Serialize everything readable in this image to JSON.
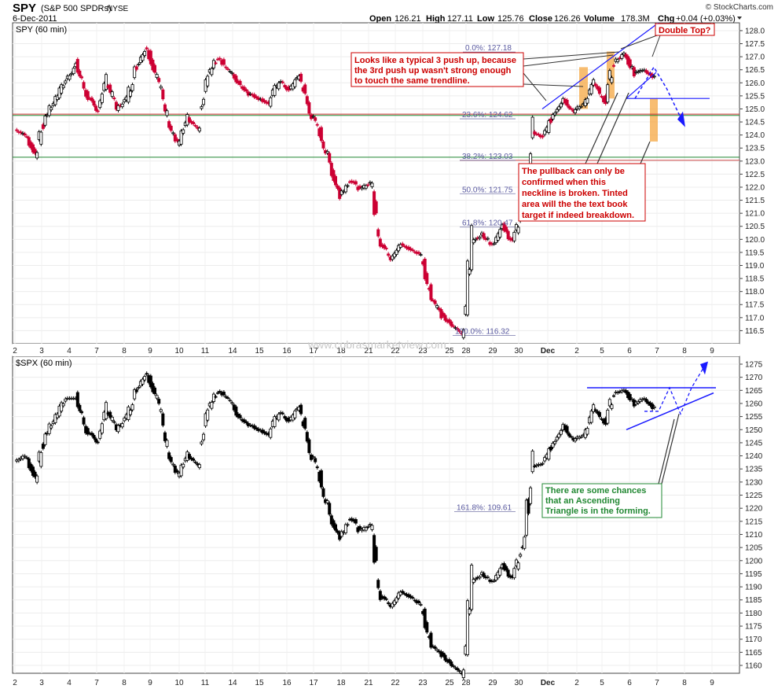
{
  "header": {
    "symbol": "SPY",
    "name": "(S&P 500 SPDRs)",
    "exchange": "NYSE",
    "date": "6-Dec-2011",
    "open_label": "Open",
    "open": "126.21",
    "high_label": "High",
    "high": "127.11",
    "low_label": "Low",
    "low": "125.76",
    "close_label": "Close",
    "close": "126.26",
    "volume_label": "Volume",
    "volume": "178.3M",
    "chg_label": "Chg",
    "chg": "+0.04 (+0.03%)",
    "brand": "© StockCharts.com"
  },
  "watermark": "www.cobrasmarketview.com",
  "x_labels": [
    "2",
    "3",
    "4",
    "7",
    "8",
    "9",
    "10",
    "11",
    "14",
    "15",
    "16",
    "17",
    "18",
    "21",
    "22",
    "23",
    "25",
    "28",
    "29",
    "30",
    "Dec",
    "2",
    "5",
    "6",
    "7",
    "8",
    "9"
  ],
  "colors": {
    "up": "#ffffff",
    "down": "#cc0033",
    "spx": "#000000",
    "trend": "#1a1aff",
    "fib": "#cc3333",
    "green": "#228833",
    "tint": "#f5a742"
  },
  "chart_data": [
    {
      "type": "candlestick",
      "title": "SPY (60 min)",
      "ylim": [
        116,
        128.3
      ],
      "y_ticks": [
        116.5,
        117,
        117.5,
        118,
        118.5,
        119,
        119.5,
        120,
        120.5,
        121,
        121.5,
        122,
        122.5,
        123,
        123.5,
        124,
        124.5,
        125,
        125.5,
        126,
        126.5,
        127,
        127.5,
        128
      ],
      "x_anchor_days": [
        "2",
        "3",
        "4",
        "7",
        "8",
        "9",
        "10",
        "11",
        "14",
        "15",
        "16",
        "17",
        "18",
        "21",
        "22",
        "23",
        "25",
        "28",
        "29",
        "30",
        "Dec",
        "2",
        "5",
        "6",
        "7"
      ],
      "close_path": [
        124.2,
        124.0,
        123.3,
        124.7,
        125.4,
        126.1,
        126.7,
        125.6,
        124.9,
        126.1,
        125.0,
        125.4,
        126.7,
        127.4,
        126.2,
        124.7,
        123.6,
        124.6,
        124.2,
        126.3,
        127.0,
        126.5,
        126.0,
        125.6,
        125.4,
        125.2,
        126.1,
        125.7,
        126.3,
        124.9,
        124.1,
        122.9,
        121.7,
        122.3,
        121.9,
        122.2,
        119.9,
        119.3,
        119.8,
        119.6,
        119.4,
        117.8,
        117.1,
        116.7,
        116.4,
        119.9,
        120.2,
        119.8,
        120.5,
        119.9,
        121.1,
        124.1,
        123.9,
        124.8,
        125.4,
        124.9,
        125.2,
        126.0,
        125.2,
        126.8,
        127.1,
        126.4,
        126.5,
        126.2
      ],
      "fib_levels": [
        {
          "label": "0.0%: 127.18",
          "value": 127.18
        },
        {
          "label": "23.6%: 124.62",
          "value": 124.62
        },
        {
          "label": "38.2%: 123.03",
          "value": 123.03
        },
        {
          "label": "50.0%: 121.75",
          "value": 121.75
        },
        {
          "label": "61.8%: 120.47",
          "value": 120.47
        },
        {
          "label": "100.0%: 116.32",
          "value": 116.32
        }
      ],
      "horizontal_lines": [
        {
          "name": "red-line",
          "value": 124.8
        },
        {
          "name": "green-line-upper",
          "value": 124.8
        },
        {
          "name": "green-line-lower",
          "value": 123.15
        },
        {
          "name": "neckline",
          "value": 125.4
        }
      ],
      "annotations": {
        "double_top": "Double Top?",
        "three_push": [
          "Looks like a typical 3 push up, because",
          "the 3rd push up wasn't strong enough",
          "to touch the same trendline."
        ],
        "pullback": [
          "The pullback can only be",
          "confirmed when this",
          "neckline is broken. Tinted",
          "area will the the text book",
          "target if indeed breakdown."
        ]
      }
    },
    {
      "type": "candlestick",
      "title": "$SPX (60 min)",
      "ylim": [
        1157,
        1278
      ],
      "y_ticks": [
        1160,
        1165,
        1170,
        1175,
        1180,
        1185,
        1190,
        1195,
        1200,
        1205,
        1210,
        1215,
        1220,
        1225,
        1230,
        1235,
        1240,
        1245,
        1250,
        1255,
        1260,
        1265,
        1270,
        1275
      ],
      "close_path": [
        1238,
        1240,
        1232,
        1248,
        1255,
        1262,
        1262,
        1250,
        1245,
        1258,
        1250,
        1255,
        1266,
        1272,
        1262,
        1243,
        1232,
        1240,
        1236,
        1258,
        1265,
        1262,
        1255,
        1252,
        1250,
        1248,
        1257,
        1253,
        1259,
        1242,
        1232,
        1217,
        1209,
        1217,
        1211,
        1214,
        1187,
        1183,
        1188,
        1186,
        1183,
        1168,
        1164,
        1160,
        1157,
        1192,
        1195,
        1192,
        1198,
        1193,
        1206,
        1236,
        1237,
        1245,
        1252,
        1246,
        1248,
        1258,
        1252,
        1264,
        1265,
        1260,
        1262,
        1258
      ],
      "fib_levels": [
        {
          "label": "161.8%: 109.61",
          "value": 1218.7
        }
      ],
      "horizontal_lines": [
        {
          "name": "resistance-line",
          "value": 1266
        }
      ],
      "annotations": {
        "ascending_triangle": [
          "There are some chances",
          "that an Ascending",
          "Triangle is in the forming."
        ]
      }
    }
  ]
}
